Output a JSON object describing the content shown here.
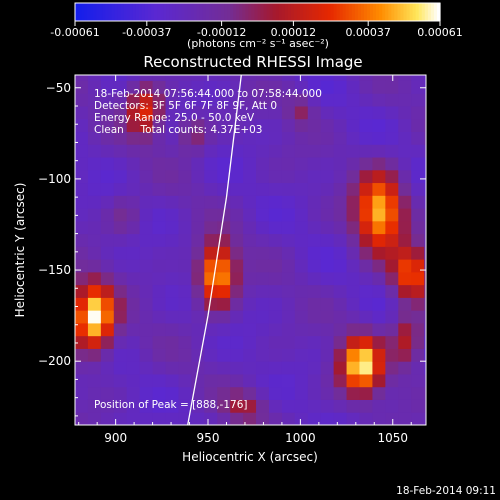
{
  "chart_data": {
    "type": "heatmap",
    "title": "Reconstructed RHESSI Image",
    "xlabel": "Heliocentric X (arcsec)",
    "ylabel": "Heliocentric Y (arcsec)",
    "xlim": [
      878,
      1068
    ],
    "ylim": [
      -235,
      -43
    ],
    "x_ticks": [
      900,
      950,
      1000,
      1050
    ],
    "y_ticks": [
      -50,
      -100,
      -150,
      -200
    ],
    "colorbar": {
      "range": [
        -0.00061,
        0.00061
      ],
      "tick_values": [
        -0.00061,
        -0.00037,
        -0.00012,
        0.00012,
        0.00037,
        0.00061
      ],
      "tick_labels": [
        "-0.00061",
        "-0.00037",
        "-0.00012",
        "0.00012",
        "0.00037",
        "0.00061"
      ],
      "unit_label": "(photons cm⁻² s⁻¹ asec⁻²)"
    },
    "annotations": [
      "18-Feb-2014 07:56:44.000 to 07:58:44.000",
      "Detectors: 3F 5F 6F 7F 8F 9F, Att 0",
      "Energy Range: 25.0 - 50.0 keV",
      "Clean     Total counts: 4.37E+03"
    ],
    "peak_label": "Position of Peak = [888,-176]",
    "peak": [
      888,
      -176
    ],
    "limb_curve": [
      [
        939,
        -235
      ],
      [
        950,
        -175
      ],
      [
        960,
        -110
      ],
      [
        968,
        -43
      ]
    ],
    "sources": [
      {
        "x": 888,
        "y": -176,
        "sx": 8,
        "sy": 13,
        "amp": 1.0
      },
      {
        "x": 916,
        "y": -62,
        "sx": 7,
        "sy": 10,
        "amp": 0.55
      },
      {
        "x": 955,
        "y": -152,
        "sx": 7,
        "sy": 12,
        "amp": 0.88
      },
      {
        "x": 1043,
        "y": -118,
        "sx": 9,
        "sy": 15,
        "amp": 0.85
      },
      {
        "x": 1060,
        "y": -152,
        "sx": 7,
        "sy": 10,
        "amp": 0.65
      },
      {
        "x": 1033,
        "y": -202,
        "sx": 8,
        "sy": 11,
        "amp": 0.92
      },
      {
        "x": 1058,
        "y": -188,
        "sx": 6,
        "sy": 10,
        "amp": 0.45
      },
      {
        "x": 942,
        "y": -75,
        "sx": 6,
        "sy": 7,
        "amp": 0.3
      },
      {
        "x": 1000,
        "y": -62,
        "sx": 5,
        "sy": 6,
        "amp": 0.25
      },
      {
        "x": 970,
        "y": -225,
        "sx": 8,
        "sy": 6,
        "amp": 0.3
      },
      {
        "x": 905,
        "y": -120,
        "sx": 6,
        "sy": 8,
        "amp": 0.18
      }
    ]
  },
  "footer_timestamp": "18-Feb-2014 09:11"
}
